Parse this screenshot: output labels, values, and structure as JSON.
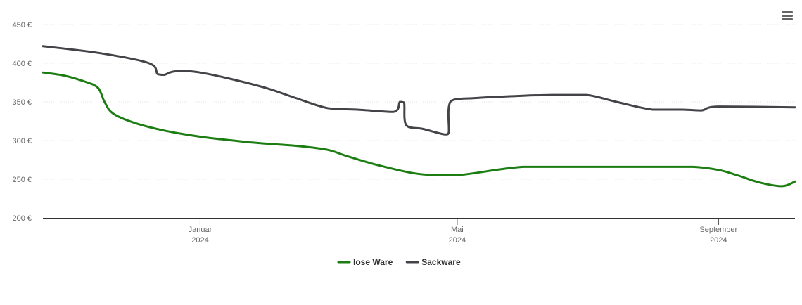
{
  "menu_icon": "hamburger-menu-icon",
  "chart_data": {
    "type": "line",
    "title": "",
    "xlabel": "",
    "ylabel": "",
    "ylim": [
      200,
      450
    ],
    "y_ticks": [
      200,
      250,
      300,
      350,
      400,
      450
    ],
    "y_tick_labels": [
      "200 €",
      "250 €",
      "300 €",
      "350 €",
      "400 €",
      "450 €"
    ],
    "xlim": [
      "2023-10-19",
      "2024-10-07"
    ],
    "x_ticks": [
      {
        "date": "2024-01-01",
        "label": [
          "Januar",
          "2024"
        ]
      },
      {
        "date": "2024-05-01",
        "label": [
          "Mai",
          "2024"
        ]
      },
      {
        "date": "2024-09-01",
        "label": [
          "September",
          "2024"
        ]
      }
    ],
    "grid": true,
    "legend_position": "bottom",
    "series": [
      {
        "name": "lose Ware",
        "color": "#1c7d12",
        "x": [
          "2023-10-19",
          "2023-10-29",
          "2023-11-08",
          "2023-11-14",
          "2023-11-17",
          "2023-11-21",
          "2023-12-01",
          "2023-12-15",
          "2024-01-01",
          "2024-01-20",
          "2024-02-01",
          "2024-02-16",
          "2024-03-01",
          "2024-03-10",
          "2024-03-25",
          "2024-04-10",
          "2024-04-22",
          "2024-05-04",
          "2024-06-01",
          "2024-07-01",
          "2024-08-01",
          "2024-08-20",
          "2024-09-01",
          "2024-09-10",
          "2024-09-20",
          "2024-10-01",
          "2024-10-07"
        ],
        "values": [
          388,
          384,
          376,
          368,
          350,
          335,
          323,
          313,
          305,
          299,
          296,
          293,
          288,
          280,
          268,
          258,
          255,
          256,
          266,
          266,
          266,
          266,
          262,
          255,
          246,
          241,
          247
        ]
      },
      {
        "name": "Sackware",
        "color": "#434348",
        "x": [
          "2023-10-19",
          "2023-11-15",
          "2023-12-08",
          "2023-12-12",
          "2023-12-15",
          "2023-12-19",
          "2023-12-25",
          "2024-01-01",
          "2024-01-15",
          "2024-02-01",
          "2024-02-15",
          "2024-03-01",
          "2024-03-15",
          "2024-04-01",
          "2024-04-04",
          "2024-04-06",
          "2024-04-07",
          "2024-04-15",
          "2024-04-25",
          "2024-04-27",
          "2024-04-28",
          "2024-05-10",
          "2024-06-01",
          "2024-06-15",
          "2024-07-01",
          "2024-07-15",
          "2024-08-01",
          "2024-08-15",
          "2024-08-24",
          "2024-09-01",
          "2024-10-07"
        ],
        "values": [
          422,
          413,
          400,
          386,
          385,
          389,
          390,
          388,
          380,
          368,
          355,
          342,
          340,
          337,
          350,
          349,
          320,
          315,
          308,
          310,
          351,
          355,
          358,
          359,
          359,
          350,
          340,
          340,
          339,
          344,
          343
        ]
      }
    ]
  }
}
